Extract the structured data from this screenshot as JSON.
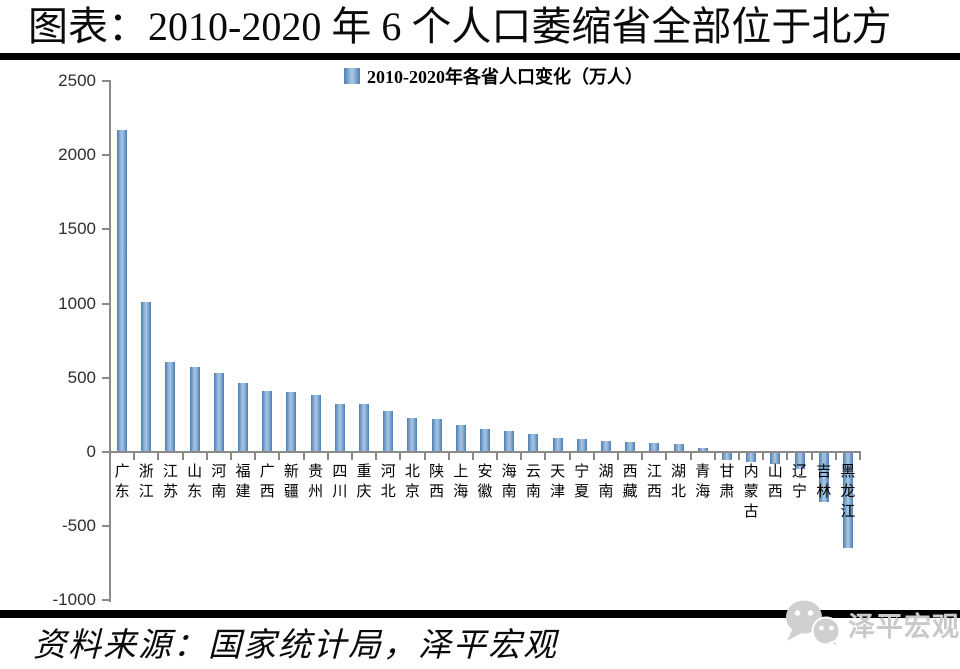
{
  "page": {
    "title": "图表：2010-2020 年 6 个人口萎缩省全部位于北方",
    "source_note": "资料来源：国家统计局，泽平宏观",
    "watermark_text": "泽平宏观"
  },
  "colors": {
    "bar_edge": "#4a7eb5",
    "bar_mid": "#7ba3cc",
    "bar_light": "#abc8e2",
    "axis": "#8a8a8a",
    "watermark": "#c9c9c9"
  },
  "chart_data": {
    "type": "bar",
    "title": "2010-2020年各省人口变化",
    "legend": [
      "2010-2020年各省人口变化（万人）"
    ],
    "legend_position": "top",
    "unit": "万人",
    "categories": [
      "广东",
      "浙江",
      "江苏",
      "山东",
      "河南",
      "福建",
      "广西",
      "新疆",
      "贵州",
      "四川",
      "重庆",
      "河北",
      "北京",
      "陕西",
      "上海",
      "安徽",
      "海南",
      "云南",
      "天津",
      "宁夏",
      "湖南",
      "西藏",
      "江西",
      "湖北",
      "青海",
      "甘肃",
      "内蒙古",
      "山西",
      "辽宁",
      "吉林",
      "黑龙江"
    ],
    "values": [
      2171,
      1014,
      609,
      573,
      534,
      465,
      410,
      404,
      382,
      326,
      321,
      276,
      228,
      220,
      185,
      153,
      141,
      124,
      93,
      90,
      76,
      65,
      62,
      52,
      30,
      -56,
      -66,
      -80,
      -115,
      -339,
      -646
    ],
    "ylim": [
      -1000,
      2500
    ],
    "yticks": [
      2500,
      2000,
      1500,
      1000,
      500,
      0,
      -500,
      -1000
    ],
    "grid": false,
    "xlabel": "",
    "ylabel": ""
  }
}
